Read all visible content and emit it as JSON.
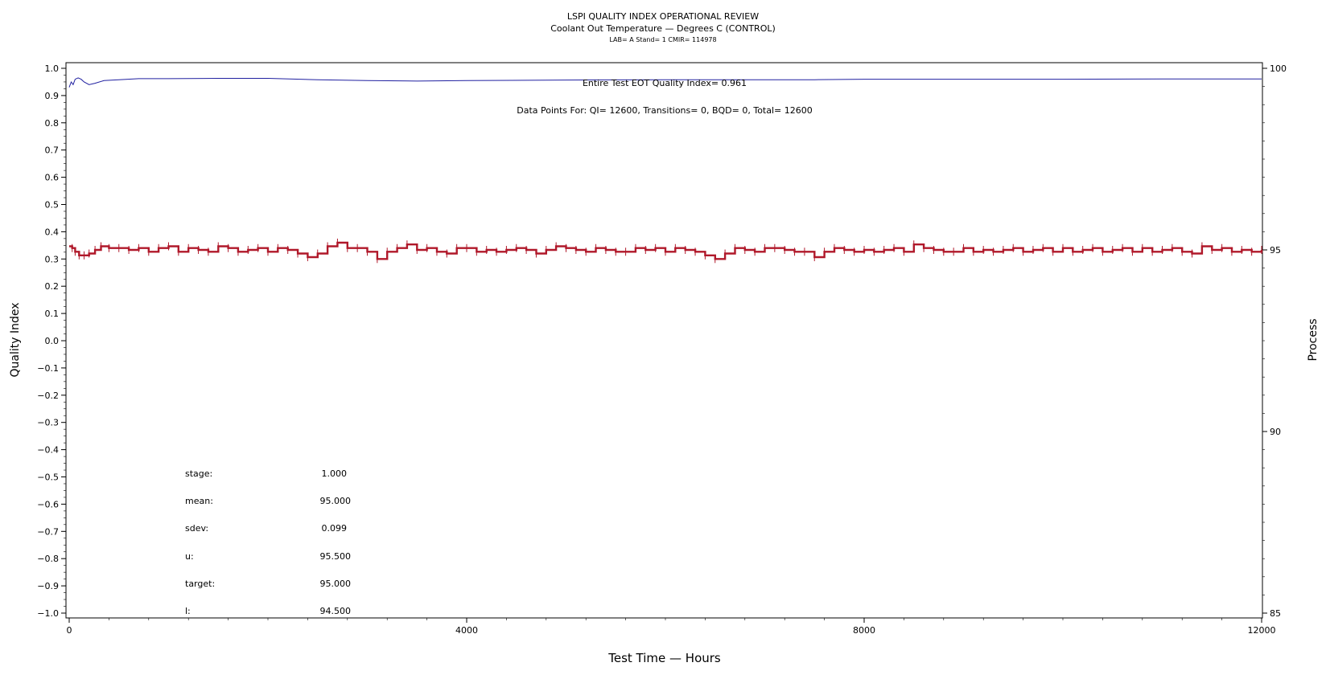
{
  "titles": {
    "title": "LSPI QUALITY INDEX OPERATIONAL REVIEW",
    "subtitle": "Coolant Out Temperature — Degrees C (CONTROL)",
    "info": "LAB= A Stand= 1 CMIR= 114978"
  },
  "annotations": {
    "quality_index": "Entire Test EOT Quality Index=   0.961",
    "data_points": "Data Points For: QI= 12600, Transitions=     0, BQD=     0, Total= 12600"
  },
  "stats": [
    {
      "label": "stage:",
      "value": "1.000"
    },
    {
      "label": "mean:",
      "value": "95.000"
    },
    {
      "label": "sdev:",
      "value": "0.099"
    },
    {
      "label": "u:",
      "value": "95.500"
    },
    {
      "label": "target:",
      "value": "95.000"
    },
    {
      "label": "l:",
      "value": "94.500"
    }
  ],
  "chart_data": {
    "type": "line",
    "xlabel": "Test Time — Hours",
    "ylabel": "Quality Index",
    "y2label": "Process",
    "xlim": [
      0,
      12000
    ],
    "ylim": [
      -1.0,
      1.0
    ],
    "y2lim": [
      85,
      100
    ],
    "x_ticks": [
      0,
      4000,
      8000,
      12000
    ],
    "y_ticks": [
      1.0,
      0.9,
      0.8,
      0.7,
      0.6,
      0.5,
      0.4,
      0.3,
      0.2,
      0.1,
      0.0,
      -0.1,
      -0.2,
      -0.3,
      -0.4,
      -0.5,
      -0.6,
      -0.7,
      -0.8,
      -0.9,
      -1.0
    ],
    "y_tick_labels": [
      "1.0",
      "0.9",
      "0.8",
      "0.7",
      "0.6",
      "0.5",
      "0.4",
      "0.3",
      "0.2",
      "0.1",
      "0.0",
      "−0.1",
      "−0.2",
      "−0.3",
      "−0.4",
      "−0.5",
      "−0.6",
      "−0.7",
      "−0.8",
      "−0.9",
      "−1.0"
    ],
    "y2_ticks": [
      100,
      95,
      90,
      85
    ],
    "grid": false,
    "series": [
      {
        "axis": "left",
        "color": "#2020a0",
        "x": [
          0,
          20,
          40,
          60,
          90,
          120,
          150,
          200,
          260,
          350,
          500,
          700,
          1000,
          1500,
          2000,
          2500,
          3000,
          3500,
          4000,
          5000,
          6000,
          7000,
          7500,
          8000,
          9000,
          10000,
          11000,
          12000
        ],
        "y": [
          0.93,
          0.95,
          0.94,
          0.96,
          0.965,
          0.96,
          0.95,
          0.94,
          0.945,
          0.955,
          0.958,
          0.962,
          0.962,
          0.963,
          0.963,
          0.958,
          0.955,
          0.953,
          0.955,
          0.957,
          0.958,
          0.958,
          0.958,
          0.96,
          0.96,
          0.96,
          0.961,
          0.961
        ]
      },
      {
        "axis": "right",
        "color": "#b0182a",
        "x": [
          0,
          30,
          60,
          100,
          150,
          200,
          260,
          320,
          400,
          500,
          600,
          700,
          800,
          900,
          1000,
          1100,
          1200,
          1300,
          1400,
          1500,
          1600,
          1700,
          1800,
          1900,
          2000,
          2100,
          2200,
          2300,
          2400,
          2500,
          2600,
          2700,
          2800,
          2900,
          3000,
          3100,
          3200,
          3300,
          3400,
          3500,
          3600,
          3700,
          3800,
          3900,
          4000,
          4100,
          4200,
          4300,
          4400,
          4500,
          4600,
          4700,
          4800,
          4900,
          5000,
          5100,
          5200,
          5300,
          5400,
          5500,
          5600,
          5700,
          5800,
          5900,
          6000,
          6100,
          6200,
          6300,
          6400,
          6500,
          6600,
          6700,
          6800,
          6900,
          7000,
          7100,
          7200,
          7300,
          7400,
          7500,
          7600,
          7700,
          7800,
          7900,
          8000,
          8100,
          8200,
          8300,
          8400,
          8500,
          8600,
          8700,
          8800,
          8900,
          9000,
          9100,
          9200,
          9300,
          9400,
          9500,
          9600,
          9700,
          9800,
          9900,
          10000,
          10100,
          10200,
          10300,
          10400,
          10500,
          10600,
          10700,
          10800,
          10900,
          11000,
          11100,
          11200,
          11300,
          11400,
          11500,
          11600,
          11700,
          11800,
          11900,
          12000
        ],
        "y": [
          95.1,
          95.05,
          94.95,
          94.85,
          94.85,
          94.9,
          95.0,
          95.1,
          95.05,
          95.05,
          95.0,
          95.05,
          94.95,
          95.05,
          95.1,
          94.95,
          95.05,
          95.0,
          94.95,
          95.1,
          95.05,
          94.95,
          95.0,
          95.05,
          94.95,
          95.05,
          95.0,
          94.9,
          94.8,
          94.9,
          95.1,
          95.2,
          95.05,
          95.05,
          94.95,
          94.75,
          94.95,
          95.05,
          95.15,
          95.0,
          95.05,
          94.95,
          94.9,
          95.05,
          95.05,
          94.95,
          95.0,
          94.95,
          95.0,
          95.05,
          95.0,
          94.9,
          95.0,
          95.1,
          95.05,
          95.0,
          94.95,
          95.05,
          95.0,
          94.95,
          94.95,
          95.05,
          95.0,
          95.05,
          94.95,
          95.05,
          95.0,
          94.95,
          94.85,
          94.75,
          94.9,
          95.05,
          95.0,
          94.95,
          95.05,
          95.05,
          95.0,
          94.95,
          94.95,
          94.8,
          94.95,
          95.05,
          95.0,
          94.95,
          95.0,
          94.95,
          95.0,
          95.05,
          94.95,
          95.15,
          95.05,
          95.0,
          94.95,
          94.95,
          95.05,
          94.95,
          95.0,
          94.95,
          95.0,
          95.05,
          94.95,
          95.0,
          95.05,
          94.95,
          95.05,
          94.95,
          95.0,
          95.05,
          94.95,
          95.0,
          95.05,
          94.95,
          95.05,
          94.95,
          95.0,
          95.05,
          94.95,
          94.9,
          95.1,
          95.0,
          95.05,
          94.95,
          95.0,
          94.95,
          95.0
        ]
      }
    ]
  }
}
